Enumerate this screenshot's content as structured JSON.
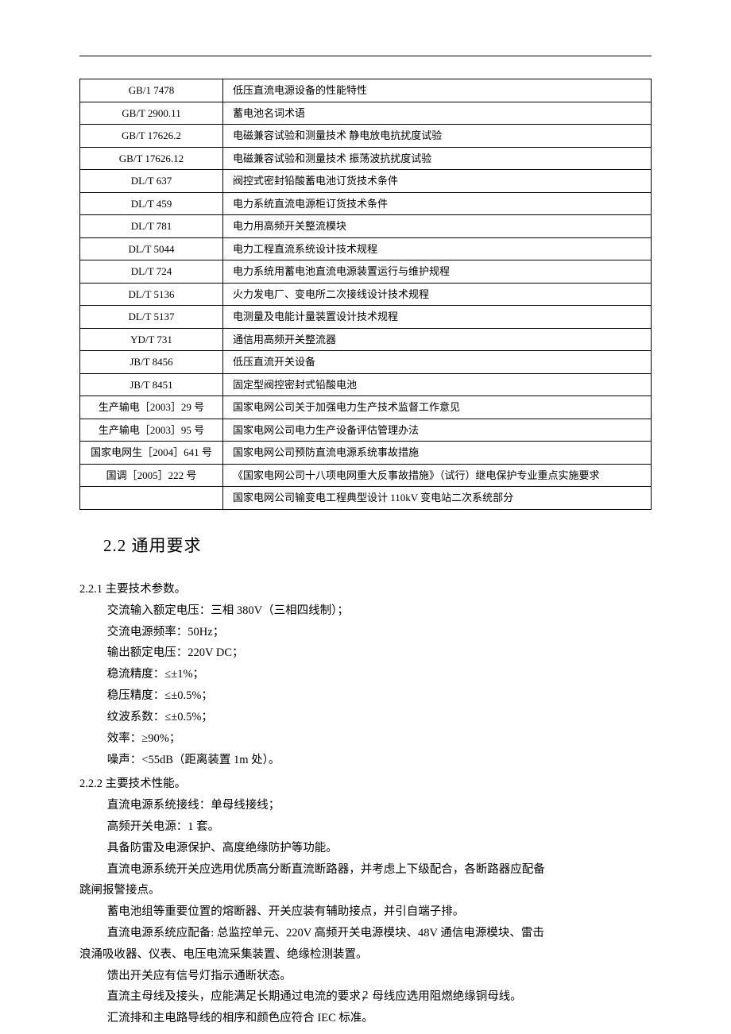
{
  "table_rows": [
    {
      "code": "GB/1 7478",
      "desc": "低压直流电源设备的性能特性"
    },
    {
      "code": "GB/T 2900.11",
      "desc": "蓄电池名词术语"
    },
    {
      "code": "GB/T 17626.2",
      "desc": "电磁兼容试验和测量技术 静电放电抗扰度试验"
    },
    {
      "code": "GB/T 17626.12",
      "desc": "电磁兼容试验和测量技术 振荡波抗扰度试验"
    },
    {
      "code": "DL/T 637",
      "desc": "阀控式密封铅酸蓄电池订货技术条件"
    },
    {
      "code": "DL/T 459",
      "desc": "电力系统直流电源柜订货技术条件"
    },
    {
      "code": "DL/T 781",
      "desc": "电力用高频开关整流模块"
    },
    {
      "code": "DL/T 5044",
      "desc": "电力工程直流系统设计技术规程"
    },
    {
      "code": "DL/T 724",
      "desc": "电力系统用蓄电池直流电源装置运行与维护规程"
    },
    {
      "code": "DL/T 5136",
      "desc": "火力发电厂、变电所二次接线设计技术规程"
    },
    {
      "code": "DL/T 5137",
      "desc": "电测量及电能计量装置设计技术规程"
    },
    {
      "code": "YD/T 731",
      "desc": "通信用高频开关整流器"
    },
    {
      "code": "JB/T 8456",
      "desc": "低压直流开关设备"
    },
    {
      "code": "JB/T 8451",
      "desc": "固定型阀控密封式铅酸电池"
    },
    {
      "code": "生产输电［2003］29 号",
      "desc": "国家电网公司关于加强电力生产技术监督工作意见"
    },
    {
      "code": "生产输电［2003］95 号",
      "desc": "国家电网公司电力生产设备评估管理办法"
    },
    {
      "code": "国家电网生［2004］641 号",
      "desc": "国家电网公司预防直流电源系统事故措施"
    },
    {
      "code": "国调［2005］222 号",
      "desc": "《国家电网公司十八项电网重大反事故措施》（试行）继电保护专业重点实施要求"
    },
    {
      "code": "",
      "desc": "国家电网公司输变电工程典型设计 110kV 变电站二次系统部分"
    }
  ],
  "section_heading": "2.2  通用要求",
  "sub1": {
    "num": "2.2.1  主要技术参数。",
    "lines": [
      "交流输入额定电压：三相 380V（三相四线制）；",
      "交流电源频率：50Hz；",
      "输出额定电压：220V DC；",
      "稳流精度：≤±1%；",
      "稳压精度：≤±0.5%；",
      "纹波系数：≤±0.5%；",
      "效率：≥90%；",
      "噪声：<55dB（距离装置 1m 处）。"
    ]
  },
  "sub2": {
    "num": "2.2.2  主要技术性能。",
    "lines_indent": [
      "直流电源系统接线：单母线接线；",
      "高频开关电源：1 套。",
      "具备防雷及电源保护、高度绝缘防护等功能。",
      "直流电源系统开关应选用优质高分断直流断路器，并考虑上下级配合，各断路器应配备"
    ],
    "line_nowrap": "跳闸报警接点。",
    "lines_rest": [
      "蓄电池组等重要位置的熔断器、开关应装有辅助接点，并引自端子排。",
      "直流电源系统应配备: 总监控单元、220V 高频开关电源模块、48V 通信电源模块、雷击"
    ],
    "line_nowrap2": "浪涌吸收器、仪表、电压电流采集装置、绝缘检测装置。",
    "lines_tail": [
      "馈出开关应有信号灯指示通断状态。",
      "直流主母线及接头，应能满足长期通过电流的要求，母线应选用阻燃绝缘铜母线。",
      "汇流排和主电路导线的相序和颜色应符合 IEC 标准。"
    ]
  },
  "page_number": "2"
}
